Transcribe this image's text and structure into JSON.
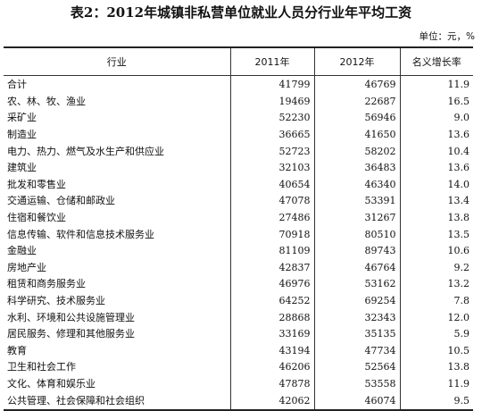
{
  "title": "表2：2012年城镇非私营单位就业人员分行业年平均工资",
  "unit": "单位：元，%",
  "table": {
    "headers": [
      "行业",
      "2011年",
      "2012年",
      "名义增长率"
    ],
    "rows": [
      [
        "合计",
        "41799",
        "46769",
        "11.9"
      ],
      [
        "农、林、牧、渔业",
        "19469",
        "22687",
        "16.5"
      ],
      [
        "采矿业",
        "52230",
        "56946",
        "9.0"
      ],
      [
        "制造业",
        "36665",
        "41650",
        "13.6"
      ],
      [
        "电力、热力、燃气及水生产和供应业",
        "52723",
        "58202",
        "10.4"
      ],
      [
        "建筑业",
        "32103",
        "36483",
        "13.6"
      ],
      [
        "批发和零售业",
        "40654",
        "46340",
        "14.0"
      ],
      [
        "交通运输、仓储和邮政业",
        "47078",
        "53391",
        "13.4"
      ],
      [
        "住宿和餐饮业",
        "27486",
        "31267",
        "13.8"
      ],
      [
        "信息传输、软件和信息技术服务业",
        "70918",
        "80510",
        "13.5"
      ],
      [
        "金融业",
        "81109",
        "89743",
        "10.6"
      ],
      [
        "房地产业",
        "42837",
        "46764",
        "9.2"
      ],
      [
        "租赁和商务服务业",
        "46976",
        "53162",
        "13.2"
      ],
      [
        "科学研究、技术服务业",
        "64252",
        "69254",
        "7.8"
      ],
      [
        "水利、环境和公共设施管理业",
        "28868",
        "32343",
        "12.0"
      ],
      [
        "居民服务、修理和其他服务业",
        "33169",
        "35135",
        "5.9"
      ],
      [
        "教育",
        "43194",
        "47734",
        "10.5"
      ],
      [
        "卫生和社会工作",
        "46206",
        "52564",
        "13.8"
      ],
      [
        "文化、体育和娱乐业",
        "47878",
        "53558",
        "11.9"
      ],
      [
        "公共管理、社会保障和社会组织",
        "42062",
        "46074",
        "9.5"
      ]
    ]
  }
}
